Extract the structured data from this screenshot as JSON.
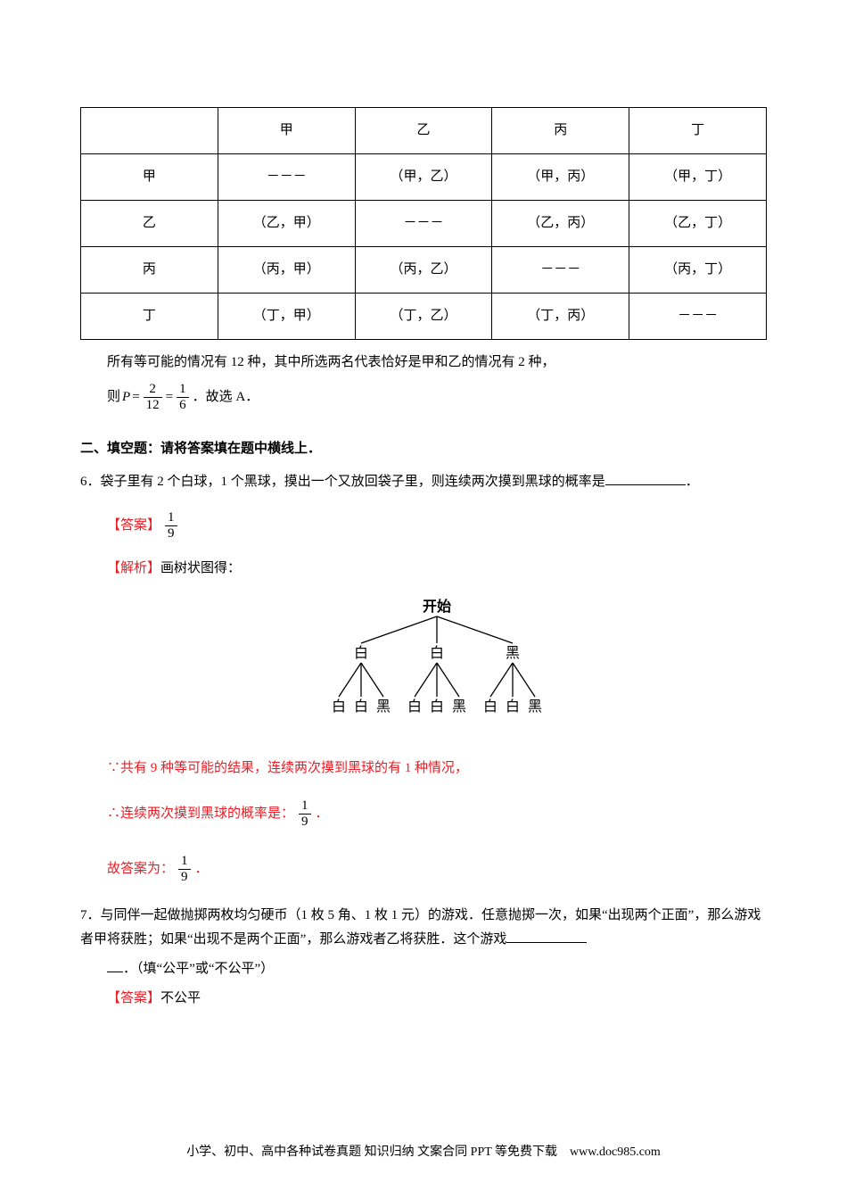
{
  "table": {
    "header": [
      "",
      "甲",
      "乙",
      "丙",
      "丁"
    ],
    "rows": [
      [
        "甲",
        "－－－",
        "（甲，乙）",
        "（甲，丙）",
        "（甲，丁）"
      ],
      [
        "乙",
        "（乙，甲）",
        "－－－",
        "（乙，丙）",
        "（乙，丁）"
      ],
      [
        "丙",
        "（丙，甲）",
        "（丙，乙）",
        "－－－",
        "（丙，丁）"
      ],
      [
        "丁",
        "（丁，甲）",
        "（丁，乙）",
        "（丁，丙）",
        "－－－"
      ]
    ]
  },
  "after_table_line": "所有等可能的情况有 12 种，其中所选两名代表恰好是甲和乙的情况有 2 种，",
  "eq": {
    "prefix": "则 ",
    "pvar": "P",
    "equals1": "=",
    "frac1_num": "2",
    "frac1_den": "12",
    "equals2": "=",
    "frac2_num": "1",
    "frac2_den": "6",
    "suffix": "．故选 A．"
  },
  "section2": "二、填空题：请将答案填在题中横线上．",
  "q6": {
    "num": "6．",
    "text_a": "袋子里有 2 个白球，1 个黑球，摸出一个又放回袋子里，则连续两次摸到黑球的概率是",
    "text_b": "．",
    "answer_label": "【答案】",
    "answer_frac_num": "1",
    "answer_frac_den": "9",
    "analysis_label": "【解析】",
    "analysis_intro": "画树状图得：",
    "tree": {
      "root": "开始",
      "level1": [
        "白",
        "白",
        "黑"
      ],
      "level2": [
        "白",
        "白",
        "黑",
        "白",
        "白",
        "黑",
        "白",
        "白",
        "黑"
      ],
      "colors": {
        "line": "#000000",
        "text": "#000000"
      }
    },
    "concl_line1_a": "∵共有 9 种等可能的结果，连续两次摸到黑球的有 1 种情况，",
    "concl_line2_a": "∴连续两次摸到黑球的概率是：",
    "concl_frac_num": "1",
    "concl_frac_den": "9",
    "concl_line2_b": "．",
    "final_a": "故答案为：",
    "final_frac_num": "1",
    "final_frac_den": "9",
    "final_b": "．"
  },
  "q7": {
    "num": "7．",
    "text": "与同伴一起做抛掷两枚均匀硬币（1 枚 5 角、1 枚 1 元）的游戏．任意抛掷一次，如果“出现两个正面”，那么游戏者甲将获胜；如果“出现不是两个正面”，那么游戏者乙将获胜．这个游戏",
    "text2": "．（填“公平”或“不公平”）",
    "answer_label": "【答案】",
    "answer_text": "不公平"
  },
  "footer": "小学、初中、高中各种试卷真题 知识归纳 文案合同 PPT 等免费下载　www.doc985.com"
}
